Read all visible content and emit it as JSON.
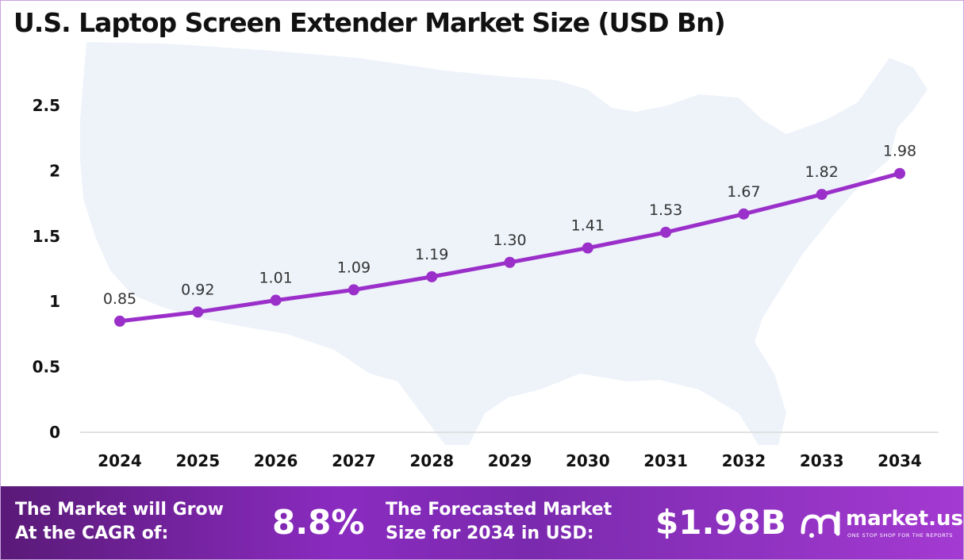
{
  "chart_data": {
    "type": "line",
    "title": "U.S. Laptop Screen Extender Market Size (USD Bn)",
    "categories": [
      "2024",
      "2025",
      "2026",
      "2027",
      "2028",
      "2029",
      "2030",
      "2031",
      "2032",
      "2033",
      "2034"
    ],
    "values": [
      0.85,
      0.92,
      1.01,
      1.09,
      1.19,
      1.3,
      1.41,
      1.53,
      1.67,
      1.82,
      1.98
    ],
    "value_labels": [
      "0.85",
      "0.92",
      "1.01",
      "1.09",
      "1.19",
      "1.30",
      "1.41",
      "1.53",
      "1.67",
      "1.82",
      "1.98"
    ],
    "yticks": [
      0,
      0.5,
      1,
      1.5,
      2,
      2.5
    ],
    "ytick_labels": [
      "0",
      "0.5",
      "1",
      "1.5",
      "2",
      "2.5"
    ],
    "ylim": [
      0,
      2.5
    ],
    "xlabel": "",
    "ylabel": "",
    "grid": false,
    "colors": {
      "line": "#9b2fc9",
      "marker": "#9b2fc9"
    }
  },
  "footer": {
    "cagr_label_line1": "The Market will Grow",
    "cagr_label_line2": "At the CAGR of:",
    "cagr_value": "8.8%",
    "forecast_label_line1": "The Forecasted Market",
    "forecast_label_line2": "Size for 2034 in USD:",
    "forecast_value": "$1.98B",
    "brand_name": "market.us",
    "brand_tagline": "ONE STOP SHOP FOR THE REPORTS"
  }
}
